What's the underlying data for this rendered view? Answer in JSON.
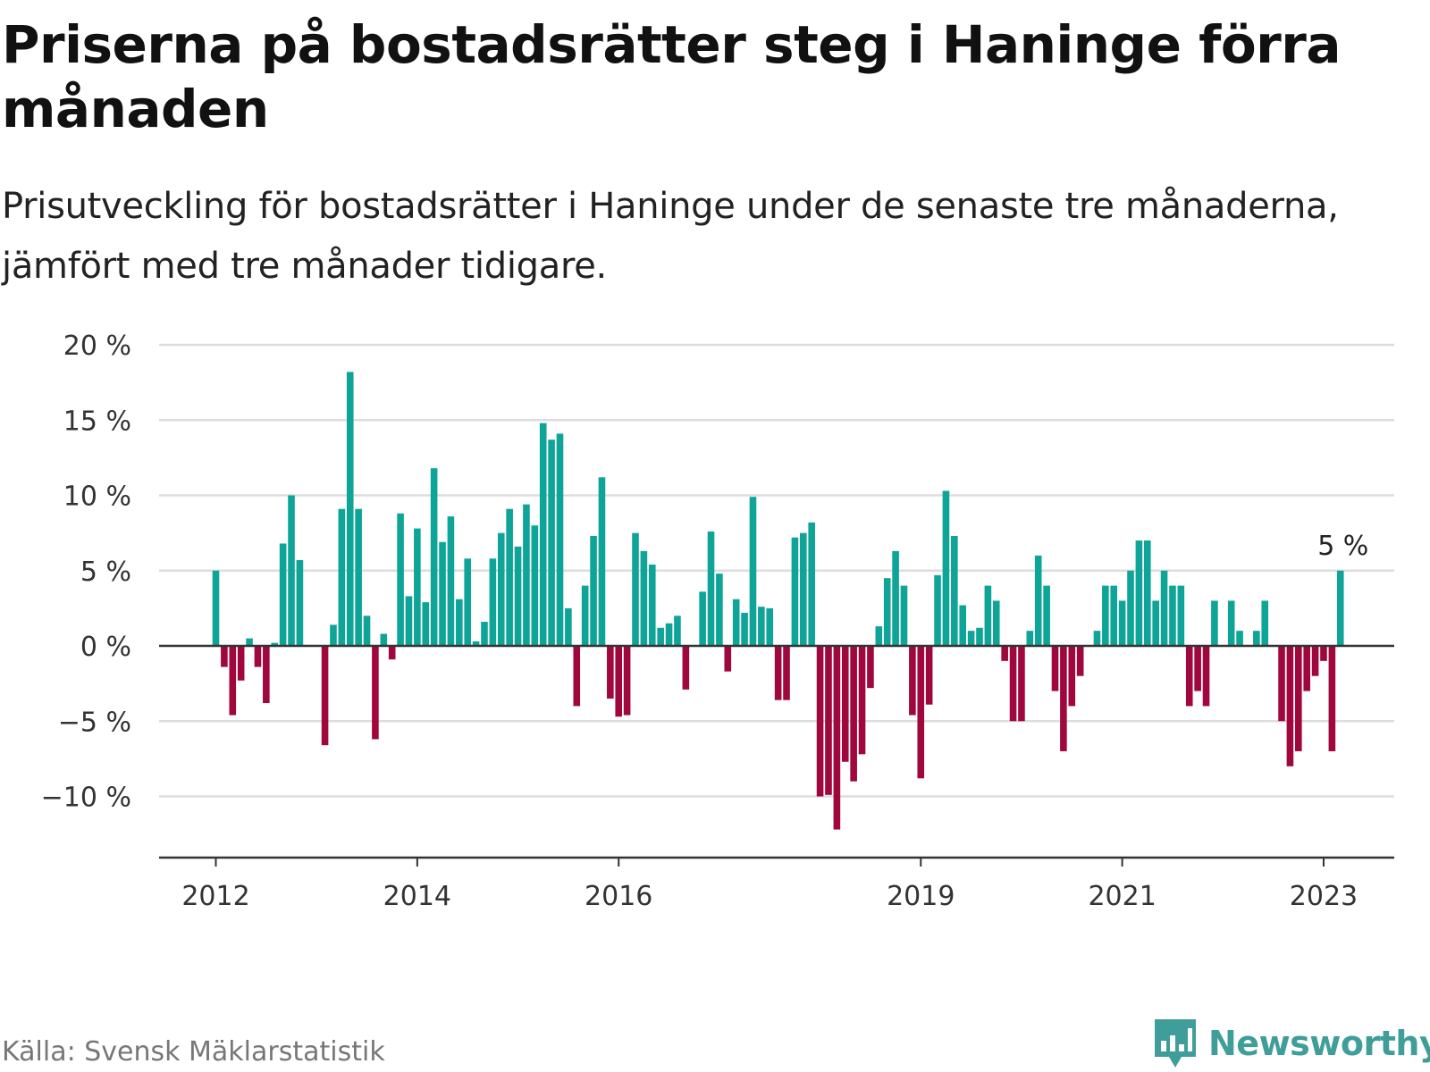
{
  "header": {
    "title": "Priserna på bostadsrätter steg i Haninge förra månaden",
    "subtitle": "Prisutveckling för bostadsrätter i Haninge under de senaste tre månaderna, jämfört med tre månader tidigare."
  },
  "footer": {
    "source": "Källa: Svensk Mäklarstatistik",
    "brand": "Newsworthy"
  },
  "colors": {
    "positive": "#0ea598",
    "negative": "#a0073d",
    "brand": "#3f9e99",
    "grid": "#dddddd",
    "axis": "#333333"
  },
  "chart_data": {
    "type": "bar",
    "title": "Priserna på bostadsrätter steg i Haninge förra månaden",
    "xlabel": "",
    "ylabel": "",
    "x_ticks": [
      "2012",
      "2014",
      "2016",
      "2019",
      "2021",
      "2023"
    ],
    "y_ticks": [
      "20 %",
      "15 %",
      "10 %",
      "5 %",
      "0 %",
      "−5 %",
      "−10 %"
    ],
    "ylim": [
      -14,
      20
    ],
    "grid": true,
    "annotation": "5 %",
    "start": "2012-01",
    "series": [
      {
        "values": [
          5.0,
          -1.4,
          -4.6,
          -2.3,
          0.5,
          -1.4,
          -3.8,
          0.2,
          6.8,
          10.0,
          5.7,
          null,
          null,
          -6.6,
          1.4,
          9.1,
          18.2,
          9.1,
          2.0,
          -6.2,
          0.8,
          -0.9,
          8.8,
          3.3,
          7.8,
          2.9,
          11.8,
          6.9,
          8.6,
          3.1,
          5.8,
          0.3,
          1.6,
          5.8,
          7.5,
          9.1,
          6.6,
          9.4,
          8.0,
          14.8,
          13.7,
          14.1,
          2.5,
          -4.0,
          4.0,
          7.3,
          11.2,
          -3.5,
          -4.7,
          -4.6,
          7.5,
          6.3,
          5.4,
          1.2,
          1.5,
          2.0,
          -2.9,
          null,
          3.6,
          7.6,
          4.8,
          -1.7,
          3.1,
          2.2,
          9.9,
          2.6,
          2.5,
          -3.6,
          -3.6,
          7.2,
          7.5,
          8.2,
          -10.0,
          -9.9,
          -12.2,
          -7.7,
          -9.0,
          -7.2,
          -2.8,
          1.3,
          4.5,
          6.3,
          4.0,
          -4.6,
          -8.8,
          -3.9,
          4.7,
          10.3,
          7.3,
          2.7,
          1.0,
          1.2,
          4.0,
          3.0,
          -1.0,
          -5.0,
          -5.0,
          1.0,
          6.0,
          4.0,
          -3.0,
          -7.0,
          -4.0,
          -2.0,
          null,
          1.0,
          4.0,
          4.0,
          3.0,
          5.0,
          7.0,
          7.0,
          3.0,
          5.0,
          4.0,
          4.0,
          -4.0,
          -3.0,
          -4.0,
          3.0,
          null,
          3.0,
          1.0,
          null,
          1.0,
          3.0,
          null,
          -5.0,
          -8.0,
          -7.0,
          -3.0,
          -2.0,
          -1.0,
          -7.0,
          5.0
        ]
      }
    ]
  }
}
